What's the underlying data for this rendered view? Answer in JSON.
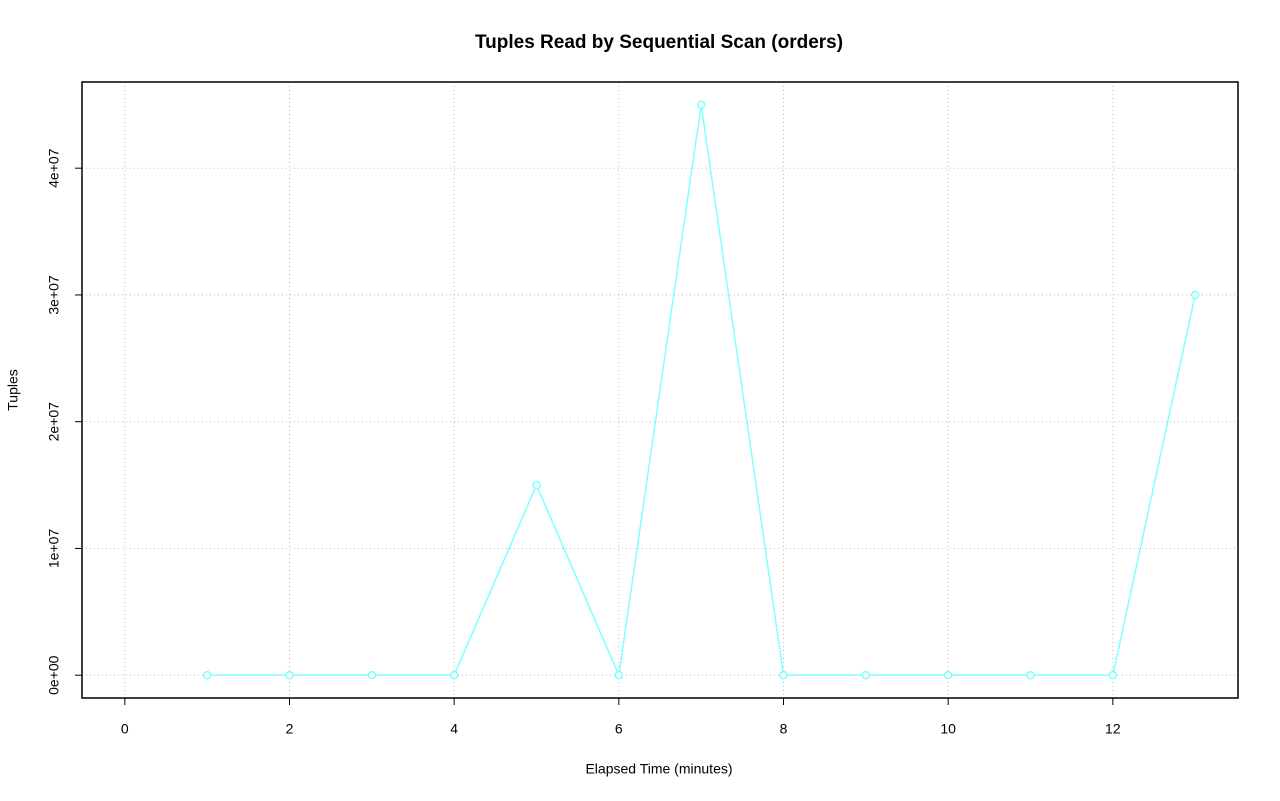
{
  "chart_data": {
    "type": "line",
    "title": "Tuples Read by Sequential Scan (orders)",
    "x_label": "Elapsed Time (minutes)",
    "y_label": "Tuples",
    "x": [
      1,
      2,
      3,
      4,
      5,
      6,
      7,
      8,
      9,
      10,
      11,
      12,
      13
    ],
    "series": [
      {
        "name": "orders",
        "color": "#80ffff",
        "values": [
          0,
          0,
          0,
          0,
          15000000,
          0,
          45000000,
          0,
          0,
          0,
          0,
          0,
          30000000
        ]
      }
    ],
    "xlim": [
      -0.52,
      13.52
    ],
    "xticks": [
      0,
      2,
      4,
      6,
      8,
      10,
      12
    ],
    "ylim": [
      -1800000,
      46800000
    ],
    "yticks": [
      {
        "value": 0,
        "label": "0e+00"
      },
      {
        "value": 10000000,
        "label": "1e+07"
      },
      {
        "value": 20000000,
        "label": "2e+07"
      },
      {
        "value": 30000000,
        "label": "3e+07"
      },
      {
        "value": 40000000,
        "label": "4e+07"
      }
    ],
    "grid": true
  }
}
